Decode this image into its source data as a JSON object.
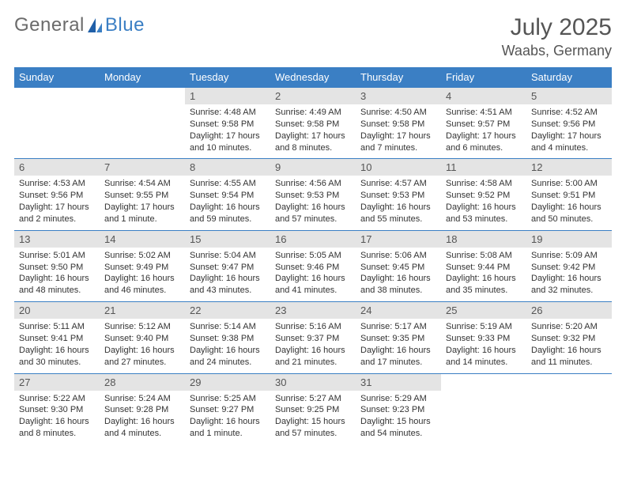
{
  "logo": {
    "text_general": "General",
    "text_blue": "Blue"
  },
  "header": {
    "month_title": "July 2025",
    "location": "Waabs, Germany"
  },
  "colors": {
    "header_bg": "#3b7fc4",
    "header_fg": "#ffffff",
    "daynum_bg": "#e4e4e4",
    "text": "#333333",
    "rule": "#3b7fc4"
  },
  "weekdays": [
    "Sunday",
    "Monday",
    "Tuesday",
    "Wednesday",
    "Thursday",
    "Friday",
    "Saturday"
  ],
  "weeks": [
    [
      null,
      null,
      {
        "n": "1",
        "sunrise": "4:48 AM",
        "sunset": "9:58 PM",
        "daylight": "17 hours and 10 minutes."
      },
      {
        "n": "2",
        "sunrise": "4:49 AM",
        "sunset": "9:58 PM",
        "daylight": "17 hours and 8 minutes."
      },
      {
        "n": "3",
        "sunrise": "4:50 AM",
        "sunset": "9:58 PM",
        "daylight": "17 hours and 7 minutes."
      },
      {
        "n": "4",
        "sunrise": "4:51 AM",
        "sunset": "9:57 PM",
        "daylight": "17 hours and 6 minutes."
      },
      {
        "n": "5",
        "sunrise": "4:52 AM",
        "sunset": "9:56 PM",
        "daylight": "17 hours and 4 minutes."
      }
    ],
    [
      {
        "n": "6",
        "sunrise": "4:53 AM",
        "sunset": "9:56 PM",
        "daylight": "17 hours and 2 minutes."
      },
      {
        "n": "7",
        "sunrise": "4:54 AM",
        "sunset": "9:55 PM",
        "daylight": "17 hours and 1 minute."
      },
      {
        "n": "8",
        "sunrise": "4:55 AM",
        "sunset": "9:54 PM",
        "daylight": "16 hours and 59 minutes."
      },
      {
        "n": "9",
        "sunrise": "4:56 AM",
        "sunset": "9:53 PM",
        "daylight": "16 hours and 57 minutes."
      },
      {
        "n": "10",
        "sunrise": "4:57 AM",
        "sunset": "9:53 PM",
        "daylight": "16 hours and 55 minutes."
      },
      {
        "n": "11",
        "sunrise": "4:58 AM",
        "sunset": "9:52 PM",
        "daylight": "16 hours and 53 minutes."
      },
      {
        "n": "12",
        "sunrise": "5:00 AM",
        "sunset": "9:51 PM",
        "daylight": "16 hours and 50 minutes."
      }
    ],
    [
      {
        "n": "13",
        "sunrise": "5:01 AM",
        "sunset": "9:50 PM",
        "daylight": "16 hours and 48 minutes."
      },
      {
        "n": "14",
        "sunrise": "5:02 AM",
        "sunset": "9:49 PM",
        "daylight": "16 hours and 46 minutes."
      },
      {
        "n": "15",
        "sunrise": "5:04 AM",
        "sunset": "9:47 PM",
        "daylight": "16 hours and 43 minutes."
      },
      {
        "n": "16",
        "sunrise": "5:05 AM",
        "sunset": "9:46 PM",
        "daylight": "16 hours and 41 minutes."
      },
      {
        "n": "17",
        "sunrise": "5:06 AM",
        "sunset": "9:45 PM",
        "daylight": "16 hours and 38 minutes."
      },
      {
        "n": "18",
        "sunrise": "5:08 AM",
        "sunset": "9:44 PM",
        "daylight": "16 hours and 35 minutes."
      },
      {
        "n": "19",
        "sunrise": "5:09 AM",
        "sunset": "9:42 PM",
        "daylight": "16 hours and 32 minutes."
      }
    ],
    [
      {
        "n": "20",
        "sunrise": "5:11 AM",
        "sunset": "9:41 PM",
        "daylight": "16 hours and 30 minutes."
      },
      {
        "n": "21",
        "sunrise": "5:12 AM",
        "sunset": "9:40 PM",
        "daylight": "16 hours and 27 minutes."
      },
      {
        "n": "22",
        "sunrise": "5:14 AM",
        "sunset": "9:38 PM",
        "daylight": "16 hours and 24 minutes."
      },
      {
        "n": "23",
        "sunrise": "5:16 AM",
        "sunset": "9:37 PM",
        "daylight": "16 hours and 21 minutes."
      },
      {
        "n": "24",
        "sunrise": "5:17 AM",
        "sunset": "9:35 PM",
        "daylight": "16 hours and 17 minutes."
      },
      {
        "n": "25",
        "sunrise": "5:19 AM",
        "sunset": "9:33 PM",
        "daylight": "16 hours and 14 minutes."
      },
      {
        "n": "26",
        "sunrise": "5:20 AM",
        "sunset": "9:32 PM",
        "daylight": "16 hours and 11 minutes."
      }
    ],
    [
      {
        "n": "27",
        "sunrise": "5:22 AM",
        "sunset": "9:30 PM",
        "daylight": "16 hours and 8 minutes."
      },
      {
        "n": "28",
        "sunrise": "5:24 AM",
        "sunset": "9:28 PM",
        "daylight": "16 hours and 4 minutes."
      },
      {
        "n": "29",
        "sunrise": "5:25 AM",
        "sunset": "9:27 PM",
        "daylight": "16 hours and 1 minute."
      },
      {
        "n": "30",
        "sunrise": "5:27 AM",
        "sunset": "9:25 PM",
        "daylight": "15 hours and 57 minutes."
      },
      {
        "n": "31",
        "sunrise": "5:29 AM",
        "sunset": "9:23 PM",
        "daylight": "15 hours and 54 minutes."
      },
      null,
      null
    ]
  ],
  "labels": {
    "sunrise_prefix": "Sunrise: ",
    "sunset_prefix": "Sunset: ",
    "daylight_prefix": "Daylight: "
  }
}
